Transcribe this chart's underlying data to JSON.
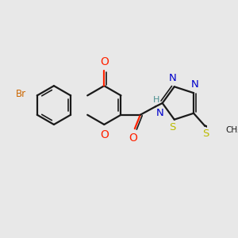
{
  "bg_color": "#e8e8e8",
  "bond_color": "#1a1a1a",
  "atom_colors": {
    "O": "#ff2200",
    "N": "#0000cc",
    "S": "#bbbb00",
    "Br": "#cc6600",
    "H_teal": "#4a9090"
  },
  "figsize": [
    3.0,
    3.0
  ],
  "dpi": 100,
  "lw": 1.6,
  "lw2": 1.2
}
